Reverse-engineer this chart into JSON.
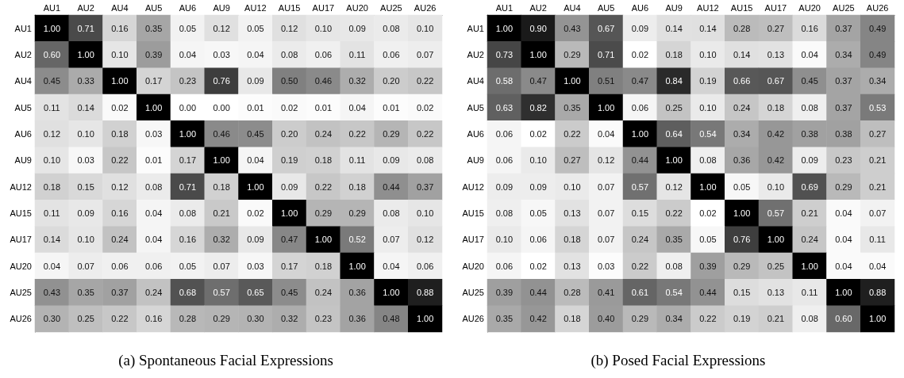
{
  "chart_data": [
    {
      "type": "heatmap",
      "title": "(a) Spontaneous Facial Expressions",
      "categories": [
        "AU1",
        "AU2",
        "AU4",
        "AU5",
        "AU6",
        "AU9",
        "AU12",
        "AU15",
        "AU17",
        "AU20",
        "AU25",
        "AU26"
      ],
      "y_categories": [
        "AU1",
        "AU2",
        "AU4",
        "AU5",
        "AU6",
        "AU9",
        "AU12",
        "AU15",
        "AU17",
        "AU20",
        "AU25",
        "AU26"
      ],
      "cells": [
        [
          1.0,
          0.71,
          0.16,
          0.35,
          0.05,
          0.12,
          0.05,
          0.12,
          0.1,
          0.09,
          0.08,
          0.1
        ],
        [
          0.6,
          1.0,
          0.1,
          0.39,
          0.04,
          0.03,
          0.04,
          0.08,
          0.06,
          0.11,
          0.06,
          0.07
        ],
        [
          0.45,
          0.33,
          1.0,
          0.17,
          0.23,
          0.76,
          0.09,
          0.5,
          0.46,
          0.32,
          0.2,
          0.22
        ],
        [
          0.11,
          0.14,
          0.02,
          1.0,
          0.0,
          0.0,
          0.01,
          0.02,
          0.01,
          0.04,
          0.01,
          0.02
        ],
        [
          0.12,
          0.1,
          0.18,
          0.03,
          1.0,
          0.46,
          0.45,
          0.2,
          0.24,
          0.22,
          0.29,
          0.22
        ],
        [
          0.1,
          0.03,
          0.22,
          0.01,
          0.17,
          1.0,
          0.04,
          0.19,
          0.18,
          0.11,
          0.09,
          0.08
        ],
        [
          0.18,
          0.15,
          0.12,
          0.08,
          0.71,
          0.18,
          1.0,
          0.09,
          0.22,
          0.18,
          0.44,
          0.37
        ],
        [
          0.11,
          0.09,
          0.16,
          0.04,
          0.08,
          0.21,
          0.02,
          1.0,
          0.29,
          0.29,
          0.08,
          0.1
        ],
        [
          0.14,
          0.1,
          0.24,
          0.04,
          0.16,
          0.32,
          0.09,
          0.47,
          1.0,
          0.52,
          0.07,
          0.12
        ],
        [
          0.04,
          0.07,
          0.06,
          0.06,
          0.05,
          0.07,
          0.03,
          0.17,
          0.18,
          1.0,
          0.04,
          0.06
        ],
        [
          0.43,
          0.35,
          0.37,
          0.24,
          0.68,
          0.57,
          0.65,
          0.45,
          0.24,
          0.36,
          1.0,
          0.88
        ],
        [
          0.3,
          0.25,
          0.22,
          0.16,
          0.28,
          0.29,
          0.3,
          0.32,
          0.23,
          0.36,
          0.48,
          1.0
        ]
      ],
      "cell_labels": [
        [
          "1.00",
          "0.71",
          "0.16",
          "0.35",
          "0.05",
          "0.12",
          "0.05",
          "0.12",
          "0.10",
          "0.09",
          "0.08",
          "0.10"
        ],
        [
          "0.60",
          "1.00",
          "0.10",
          "0.39",
          "0.04",
          "0.03",
          "0.04",
          "0.08",
          "0.06",
          "0.11",
          "0.06",
          "0.07"
        ],
        [
          "0.45",
          "0.33",
          "1.00",
          "0.17",
          "0.23",
          "0.76",
          "0.09",
          "0.50",
          "0.46",
          "0.32",
          "0.20",
          "0.22"
        ],
        [
          "0.11",
          "0.14",
          "0.02",
          "1.00",
          "0.00",
          "0.00",
          "0.01",
          "0.02",
          "0.01",
          "0.04",
          "0.01",
          "0.02"
        ],
        [
          "0.12",
          "0.10",
          "0.18",
          "0.03",
          "1.00",
          "0.46",
          "0.45",
          "0.20",
          "0.24",
          "0.22",
          "0.29",
          "0.22"
        ],
        [
          "0.10",
          "0.03",
          "0.22",
          "0.01",
          "0.17",
          "1.00",
          "0.04",
          "0.19",
          "0.18",
          "0.11",
          "0.09",
          "0.08"
        ],
        [
          "0.18",
          "0.15",
          "0.12",
          "0.08",
          "0.71",
          "0.18",
          "1.00",
          "0.09",
          "0.22",
          "0.18",
          "0.44",
          "0.37"
        ],
        [
          "0.11",
          "0.09",
          "0.16",
          "0.04",
          "0.08",
          "0.21",
          "0.02",
          "1.00",
          "0.29",
          "0.29",
          "0.08",
          "0.10"
        ],
        [
          "0.14",
          "0.10",
          "0.24",
          "0.04",
          "0.16",
          "0.32",
          "0.09",
          "0.47",
          "1.00",
          "0.52",
          "0.07",
          "0.12"
        ],
        [
          "0.04",
          "0.07",
          "0.06",
          "0.06",
          "0.05",
          "0.07",
          "0.03",
          "0.17",
          "0.18",
          "1.00",
          "0.04",
          "0.06"
        ],
        [
          "0.43",
          "0.35",
          "0.37",
          "0.24",
          "0.68",
          "0.57",
          "0.65",
          "0.45",
          "0.24",
          "0.36",
          "1.00",
          "0.88"
        ],
        [
          "0.30",
          "0.25",
          "0.22",
          "0.16",
          "0.28",
          "0.29",
          "0.30",
          "0.32",
          "0.23",
          "0.36",
          "0.48",
          "1.00"
        ]
      ]
    },
    {
      "type": "heatmap",
      "title": "(b) Posed Facial Expressions",
      "categories": [
        "AU1",
        "AU2",
        "AU4",
        "AU5",
        "AU6",
        "AU9",
        "AU12",
        "AU15",
        "AU17",
        "AU20",
        "AU25",
        "AU26"
      ],
      "y_categories": [
        "AU1",
        "AU2",
        "AU4",
        "AU5",
        "AU6",
        "AU9",
        "AU12",
        "AU15",
        "AU17",
        "AU20",
        "AU25",
        "AU26"
      ],
      "cells": [
        [
          1.0,
          0.9,
          0.43,
          0.67,
          0.09,
          0.14,
          0.14,
          0.28,
          0.27,
          0.16,
          0.37,
          0.49
        ],
        [
          0.73,
          1.0,
          0.29,
          0.71,
          0.02,
          0.18,
          0.1,
          0.14,
          0.13,
          0.04,
          0.34,
          0.49
        ],
        [
          0.58,
          0.47,
          1.0,
          0.51,
          0.47,
          0.84,
          0.19,
          0.66,
          0.67,
          0.45,
          0.37,
          0.34
        ],
        [
          0.63,
          0.82,
          0.35,
          1.0,
          0.06,
          0.25,
          0.1,
          0.24,
          0.18,
          0.08,
          0.37,
          0.53
        ],
        [
          0.06,
          0.02,
          0.22,
          0.04,
          1.0,
          0.64,
          0.54,
          0.34,
          0.42,
          0.38,
          0.38,
          0.27
        ],
        [
          0.06,
          0.1,
          0.27,
          0.12,
          0.44,
          1.0,
          0.08,
          0.36,
          0.42,
          0.09,
          0.23,
          0.21
        ],
        [
          0.09,
          0.09,
          0.1,
          0.07,
          0.57,
          0.12,
          1.0,
          0.05,
          0.1,
          0.69,
          0.29,
          0.21
        ],
        [
          0.08,
          0.05,
          0.13,
          0.07,
          0.15,
          0.22,
          0.02,
          1.0,
          0.57,
          0.21,
          0.04,
          0.07
        ],
        [
          0.1,
          0.06,
          0.18,
          0.07,
          0.24,
          0.35,
          0.05,
          0.76,
          1.0,
          0.24,
          0.04,
          0.11
        ],
        [
          0.06,
          0.02,
          0.13,
          0.03,
          0.22,
          0.08,
          0.39,
          0.29,
          0.25,
          1.0,
          0.04,
          0.04
        ],
        [
          0.39,
          0.44,
          0.28,
          0.41,
          0.61,
          0.54,
          0.44,
          0.15,
          0.13,
          0.11,
          1.0,
          0.88
        ],
        [
          0.35,
          0.42,
          0.18,
          0.4,
          0.29,
          0.34,
          0.22,
          0.19,
          0.21,
          0.08,
          0.6,
          1.0
        ]
      ],
      "cell_labels": [
        [
          "1.00",
          "0.90",
          "0.43",
          "0.67",
          "0.09",
          "0.14",
          "0.14",
          "0.28",
          "0.27",
          "0.16",
          "0.37",
          "0.49"
        ],
        [
          "0.73",
          "1.00",
          "0.29",
          "0.71",
          "0.02",
          "0.18",
          "0.10",
          "0.14",
          "0.13",
          "0.04",
          "0.34",
          "0.49"
        ],
        [
          "0.58",
          "0.47",
          "1.00",
          "0.51",
          "0.47",
          "0.84",
          "0.19",
          "0.66",
          "0.67",
          "0.45",
          "0.37",
          "0.34"
        ],
        [
          "0.63",
          "0.82",
          "0.35",
          "1.00",
          "0.06",
          "0.25",
          "0.10",
          "0.24",
          "0.18",
          "0.08",
          "0.37",
          "0.53"
        ],
        [
          "0.06",
          "0.02",
          "0.22",
          "0.04",
          "1.00",
          "0.64",
          "0.54",
          "0.34",
          "0.42",
          "0.38",
          "0.38",
          "0.27"
        ],
        [
          "0.06",
          "0.10",
          "0.27",
          "0.12",
          "0.44",
          "1.00",
          "0.08",
          "0.36",
          "0.42",
          "0.09",
          "0.23",
          "0.21"
        ],
        [
          "0.09",
          "0.09",
          "0.10",
          "0.07",
          "0.57",
          "0.12",
          "1.00",
          "0.05",
          "0.10",
          "0.69",
          "0.29",
          "0.21"
        ],
        [
          "0.08",
          "0.05",
          "0.13",
          "0.07",
          "0.15",
          "0.22",
          "0.02",
          "1.00",
          "0.57",
          "0.21",
          "0.04",
          "0.07"
        ],
        [
          "0.10",
          "0.06",
          "0.18",
          "0.07",
          "0.24",
          "0.35",
          "0.05",
          "0.76",
          "1.00",
          "0.24",
          "0.04",
          "0.11"
        ],
        [
          "0.06",
          "0.02",
          "0.13",
          "0.03",
          "0.22",
          "0.08",
          "0.39",
          "0.29",
          "0.25",
          "1.00",
          "0.04",
          "0.04"
        ],
        [
          "0.39",
          "0.44",
          "0.28",
          "0.41",
          "0.61",
          "0.54",
          "0.44",
          "0.15",
          "0.13",
          "0.11",
          "1.00",
          "0.88"
        ],
        [
          "0.35",
          "0.42",
          "0.18",
          "0.40",
          "0.29",
          "0.34",
          "0.22",
          "0.19",
          "0.21",
          "0.08",
          "0.60",
          "1.00"
        ]
      ]
    }
  ]
}
